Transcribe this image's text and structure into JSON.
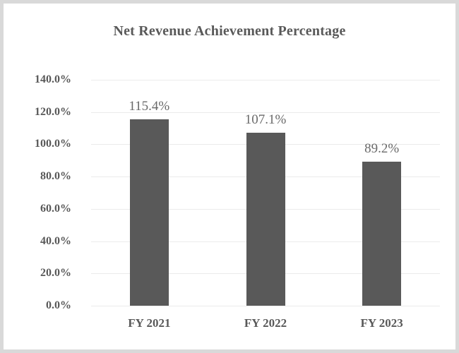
{
  "chart_data": {
    "type": "bar",
    "title": "Net Revenue Achievement Percentage",
    "categories": [
      "FY 2021",
      "FY 2022",
      "FY 2023"
    ],
    "values": [
      115.4,
      107.1,
      89.2
    ],
    "data_labels": [
      "115.4%",
      "107.1%",
      "89.2%"
    ],
    "yticks": [
      {
        "value": 0,
        "label": "0.0%"
      },
      {
        "value": 20,
        "label": "20.0%"
      },
      {
        "value": 40,
        "label": "40.0%"
      },
      {
        "value": 60,
        "label": "60.0%"
      },
      {
        "value": 80,
        "label": "80.0%"
      },
      {
        "value": 100,
        "label": "100.0%"
      },
      {
        "value": 120,
        "label": "120.0%"
      },
      {
        "value": 140,
        "label": "140.0%"
      }
    ],
    "ylim": [
      0,
      140
    ],
    "xlabel": "",
    "ylabel": "",
    "grid": true,
    "legend": false,
    "colors": {
      "bar_fill": "#595959",
      "gridline": "#ebebeb",
      "title_text": "#595959",
      "axis_text": "#595959",
      "data_label_text": "#6a6a6a",
      "frame_border": "#d9d9d9",
      "background": "#ffffff"
    }
  }
}
